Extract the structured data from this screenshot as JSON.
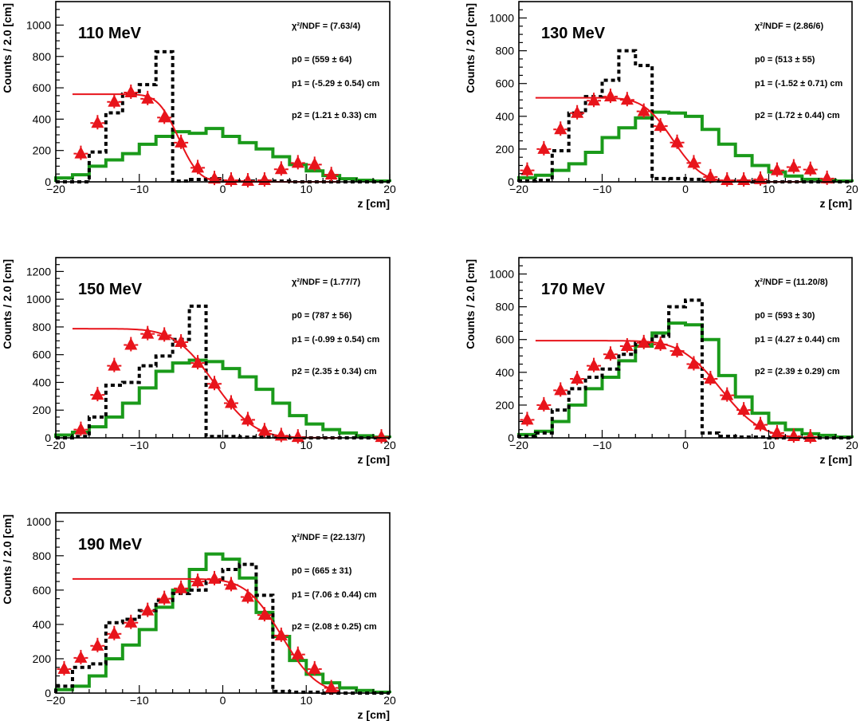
{
  "colors": {
    "simulation": "#1a9a1a",
    "data_dashed": "#000000",
    "fit_points": "#e8141b"
  },
  "chart_data": [
    {
      "type": "histogram",
      "title": "110 MeV",
      "xlabel": "z [cm]",
      "ylabel": "Counts / 2.0 [cm]",
      "xlim": [
        -20,
        20
      ],
      "ylim": [
        0,
        1150
      ],
      "xticks": [
        "−20",
        "−10",
        "0",
        "10",
        "20"
      ],
      "yticks": [
        "0",
        "200",
        "400",
        "600",
        "800",
        "1000"
      ],
      "stats": [
        "χ²/NDF = (7.63/4)",
        "p0 = (559 ± 64)",
        "p1 = (-5.29 ± 0.54) cm",
        "p2 = (1.21 ± 0.33) cm"
      ],
      "bin_edges": [
        -20,
        -18,
        -16,
        -14,
        -12,
        -10,
        -8,
        -6,
        -4,
        -2,
        0,
        2,
        4,
        6,
        8,
        10,
        12,
        14,
        16,
        18,
        20
      ],
      "series": [
        {
          "name": "simulation (green)",
          "values": [
            25,
            45,
            100,
            140,
            180,
            240,
            290,
            320,
            310,
            340,
            290,
            250,
            210,
            160,
            110,
            70,
            40,
            20,
            10,
            5
          ]
        },
        {
          "name": "data (dashed)",
          "values": [
            0,
            0,
            190,
            440,
            560,
            620,
            830,
            5,
            15,
            20,
            5,
            5,
            5,
            5,
            0,
            0,
            0,
            0,
            0,
            0
          ]
        },
        {
          "name": "fit points (red)",
          "x": [
            -17,
            -15,
            -13,
            -11,
            -9,
            -7,
            -5,
            -3,
            -1,
            1,
            3,
            5,
            7,
            9,
            11,
            13
          ],
          "values": [
            180,
            375,
            510,
            570,
            530,
            410,
            250,
            90,
            20,
            10,
            5,
            10,
            80,
            120,
            110,
            45
          ]
        }
      ],
      "fit": {
        "p0": 559,
        "p1": -5.29,
        "p2": 1.21
      }
    },
    {
      "type": "histogram",
      "title": "130 MeV",
      "xlabel": "z [cm]",
      "ylabel": "Counts / 2.0 [cm]",
      "xlim": [
        -20,
        20
      ],
      "ylim": [
        0,
        1100
      ],
      "xticks": [
        "−20",
        "−10",
        "0",
        "10",
        "20"
      ],
      "yticks": [
        "0",
        "200",
        "400",
        "600",
        "800",
        "1000"
      ],
      "stats": [
        "χ²/NDF = (2.86/6)",
        "p0 = (513 ± 55)",
        "p1 = (-1.52 ± 0.71) cm",
        "p2 = (1.72 ± 0.44) cm"
      ],
      "bin_edges": [
        -20,
        -18,
        -16,
        -14,
        -12,
        -10,
        -8,
        -6,
        -4,
        -2,
        0,
        2,
        4,
        6,
        8,
        10,
        12,
        14,
        16,
        18,
        20
      ],
      "series": [
        {
          "name": "simulation (green)",
          "values": [
            25,
            40,
            70,
            110,
            180,
            270,
            330,
            390,
            425,
            420,
            400,
            320,
            230,
            160,
            100,
            60,
            35,
            15,
            10,
            5
          ]
        },
        {
          "name": "data (dashed)",
          "values": [
            5,
            10,
            190,
            420,
            520,
            620,
            800,
            710,
            20,
            20,
            15,
            5,
            5,
            5,
            0,
            0,
            0,
            0,
            0,
            0
          ]
        },
        {
          "name": "fit points (red)",
          "x": [
            -19,
            -17,
            -15,
            -13,
            -11,
            -9,
            -7,
            -5,
            -3,
            -1,
            1,
            3,
            5,
            7,
            9,
            11,
            13,
            15,
            17
          ],
          "values": [
            70,
            200,
            320,
            420,
            495,
            520,
            500,
            430,
            340,
            240,
            115,
            30,
            10,
            10,
            15,
            70,
            90,
            75,
            20
          ]
        }
      ],
      "fit": {
        "p0": 513,
        "p1": -1.52,
        "p2": 1.72
      }
    },
    {
      "type": "histogram",
      "title": "150 MeV",
      "xlabel": "z [cm]",
      "ylabel": "Counts / 2.0 [cm]",
      "xlim": [
        -20,
        20
      ],
      "ylim": [
        0,
        1300
      ],
      "xticks": [
        "−20",
        "−10",
        "0",
        "10",
        "20"
      ],
      "yticks": [
        "0",
        "200",
        "400",
        "600",
        "800",
        "1000",
        "1200"
      ],
      "stats": [
        "χ²/NDF = (1.77/7)",
        "p0 = (787 ± 56)",
        "p1 = (-0.99 ± 0.54) cm",
        "p2 = (2.35 ± 0.34) cm"
      ],
      "bin_edges": [
        -20,
        -18,
        -16,
        -14,
        -12,
        -10,
        -8,
        -6,
        -4,
        -2,
        0,
        2,
        4,
        6,
        8,
        10,
        12,
        14,
        16,
        18,
        20
      ],
      "series": [
        {
          "name": "simulation (green)",
          "values": [
            20,
            40,
            80,
            150,
            250,
            360,
            480,
            540,
            560,
            550,
            500,
            440,
            350,
            250,
            160,
            100,
            60,
            35,
            15,
            5
          ]
        },
        {
          "name": "data (dashed)",
          "values": [
            0,
            10,
            150,
            380,
            400,
            520,
            590,
            710,
            950,
            10,
            10,
            5,
            5,
            5,
            0,
            0,
            0,
            0,
            0,
            0
          ]
        },
        {
          "name": "fit points (red)",
          "x": [
            -17,
            -15,
            -13,
            -11,
            -9,
            -7,
            -5,
            -3,
            -1,
            1,
            3,
            5,
            7,
            9,
            19
          ],
          "values": [
            60,
            310,
            520,
            670,
            750,
            740,
            690,
            540,
            390,
            250,
            130,
            50,
            15,
            5,
            5
          ]
        }
      ],
      "fit": {
        "p0": 787,
        "p1": -0.99,
        "p2": 2.35
      }
    },
    {
      "type": "histogram",
      "title": "170 MeV",
      "xlabel": "z [cm]",
      "ylabel": "Counts / 2.0 [cm]",
      "xlim": [
        -20,
        20
      ],
      "ylim": [
        0,
        1100
      ],
      "xticks": [
        "−20",
        "−10",
        "0",
        "10",
        "20"
      ],
      "yticks": [
        "0",
        "200",
        "400",
        "600",
        "800",
        "1000"
      ],
      "stats": [
        "χ²/NDF = (11.20/8)",
        "p0 = (593 ± 30)",
        "p1 = (4.27 ± 0.44) cm",
        "p2 = (2.39 ± 0.29) cm"
      ],
      "bin_edges": [
        -20,
        -18,
        -16,
        -14,
        -12,
        -10,
        -8,
        -6,
        -4,
        -2,
        0,
        2,
        4,
        6,
        8,
        10,
        12,
        14,
        16,
        18,
        20
      ],
      "series": [
        {
          "name": "simulation (green)",
          "values": [
            20,
            40,
            100,
            200,
            300,
            370,
            470,
            560,
            640,
            700,
            690,
            600,
            380,
            250,
            150,
            90,
            50,
            25,
            15,
            5
          ]
        },
        {
          "name": "data (dashed)",
          "values": [
            10,
            30,
            170,
            300,
            370,
            420,
            510,
            580,
            620,
            800,
            840,
            30,
            10,
            5,
            5,
            0,
            0,
            0,
            0,
            0
          ]
        },
        {
          "name": "fit points (red)",
          "x": [
            -19,
            -17,
            -15,
            -13,
            -11,
            -9,
            -7,
            -5,
            -3,
            -1,
            1,
            3,
            5,
            7,
            9,
            11,
            13,
            15
          ],
          "values": [
            110,
            200,
            290,
            360,
            440,
            510,
            560,
            580,
            570,
            530,
            450,
            360,
            260,
            170,
            80,
            30,
            10,
            5
          ]
        }
      ],
      "fit": {
        "p0": 593,
        "p1": 4.27,
        "p2": 2.39
      }
    },
    {
      "type": "histogram",
      "title": "190 MeV",
      "xlabel": "z [cm]",
      "ylabel": "Counts / 2.0 [cm]",
      "xlim": [
        -20,
        20
      ],
      "ylim": [
        0,
        1050
      ],
      "xticks": [
        "−20",
        "−10",
        "0",
        "10",
        "20"
      ],
      "yticks": [
        "0",
        "200",
        "400",
        "600",
        "800",
        "1000"
      ],
      "stats": [
        "χ²/NDF = (22.13/7)",
        "p0 = (665 ± 31)",
        "p1 = (7.06 ± 0.44) cm",
        "p2 = (2.08 ± 0.25) cm"
      ],
      "bin_edges": [
        -20,
        -18,
        -16,
        -14,
        -12,
        -10,
        -8,
        -6,
        -4,
        -2,
        0,
        2,
        4,
        6,
        8,
        10,
        12,
        14,
        16,
        18,
        20
      ],
      "series": [
        {
          "name": "simulation (green)",
          "values": [
            20,
            40,
            100,
            200,
            280,
            370,
            500,
            600,
            720,
            810,
            780,
            670,
            470,
            330,
            190,
            110,
            60,
            30,
            15,
            5
          ]
        },
        {
          "name": "data (dashed)",
          "values": [
            40,
            150,
            170,
            410,
            430,
            480,
            540,
            580,
            600,
            650,
            720,
            750,
            570,
            10,
            5,
            5,
            0,
            0,
            0,
            0
          ]
        },
        {
          "name": "fit points (red)",
          "x": [
            -19,
            -17,
            -15,
            -13,
            -11,
            -9,
            -7,
            -5,
            -3,
            -1,
            1,
            3,
            5,
            7,
            9,
            11,
            13
          ],
          "values": [
            140,
            205,
            275,
            345,
            410,
            480,
            550,
            610,
            650,
            665,
            630,
            560,
            455,
            335,
            225,
            140,
            30
          ]
        }
      ],
      "fit": {
        "p0": 665,
        "p1": 7.06,
        "p2": 2.08
      }
    }
  ]
}
